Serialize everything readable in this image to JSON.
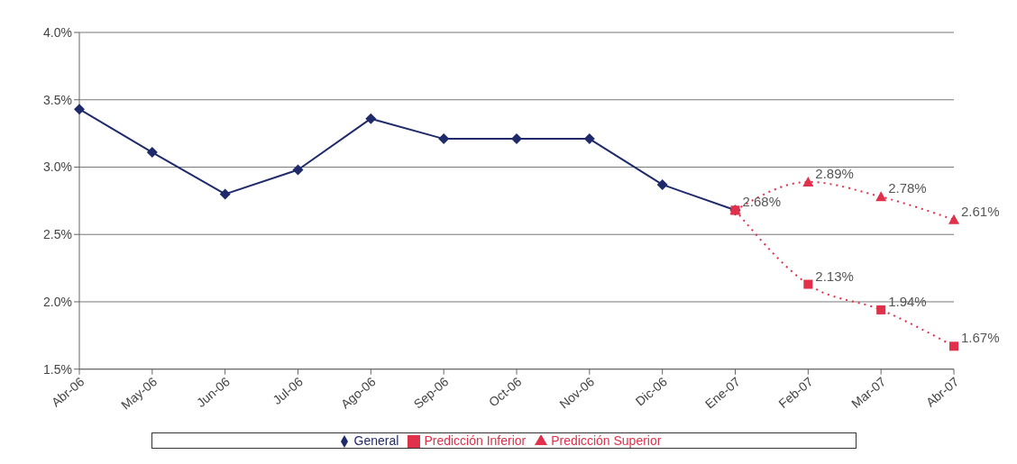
{
  "chart_data": {
    "type": "line",
    "categories": [
      "Abr-06",
      "May-06",
      "Jun-06",
      "Jul-06",
      "Ago-06",
      "Sep-06",
      "Oct-06",
      "Nov-06",
      "Dic-06",
      "Ene-07",
      "Feb-07",
      "Mar-07",
      "Abr-07"
    ],
    "ylim": [
      1.5,
      4.0
    ],
    "yticks": [
      {
        "value": 1.5,
        "label": "1.5%"
      },
      {
        "value": 2.0,
        "label": "2.0%"
      },
      {
        "value": 2.5,
        "label": "2.5%"
      },
      {
        "value": 3.0,
        "label": "3.0%"
      },
      {
        "value": 3.5,
        "label": "3.5%"
      },
      {
        "value": 4.0,
        "label": "4.0%"
      }
    ],
    "grid": "y",
    "legend": "bottom",
    "series": [
      {
        "name": "General",
        "color": "#1f2a6b",
        "marker": "diamond",
        "line_style": "solid",
        "values": [
          3.43,
          3.11,
          2.8,
          2.98,
          3.36,
          3.21,
          3.21,
          3.21,
          2.87,
          2.68,
          null,
          null,
          null
        ]
      },
      {
        "name": "Predicción Inferior",
        "color": "#e0304a",
        "marker": "square",
        "line_style": "dotted",
        "values": [
          null,
          null,
          null,
          null,
          null,
          null,
          null,
          null,
          null,
          2.68,
          2.13,
          1.94,
          1.67
        ],
        "value_labels": [
          null,
          null,
          null,
          null,
          null,
          null,
          null,
          null,
          null,
          "2.68%",
          "2.13%",
          "1.94%",
          "1.67%"
        ]
      },
      {
        "name": "Predicción Superior",
        "color": "#e0304a",
        "marker": "triangle",
        "line_style": "dotted",
        "values": [
          null,
          null,
          null,
          null,
          null,
          null,
          null,
          null,
          null,
          2.68,
          2.89,
          2.78,
          2.61
        ],
        "value_labels": [
          null,
          null,
          null,
          null,
          null,
          null,
          null,
          null,
          null,
          null,
          "2.89%",
          "2.78%",
          "2.61%"
        ]
      }
    ]
  }
}
